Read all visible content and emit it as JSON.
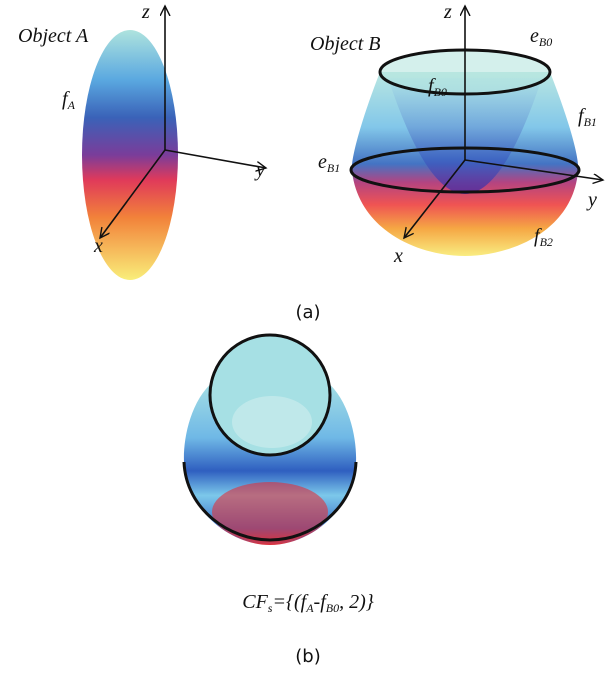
{
  "panel_a": {
    "object_a": {
      "title": "Object A",
      "axes": {
        "z": "z",
        "y": "y",
        "x": "x"
      },
      "label": {
        "base": "f",
        "sub": "A"
      }
    },
    "object_b": {
      "title": "Object B",
      "axes": {
        "z": "z",
        "y": "y",
        "x": "x"
      },
      "labels": [
        {
          "base": "e",
          "sub": "B0"
        },
        {
          "base": "f",
          "sub": "B0"
        },
        {
          "base": "f",
          "sub": "B1"
        },
        {
          "base": "e",
          "sub": "B1"
        },
        {
          "base": "f",
          "sub": "B2"
        }
      ]
    },
    "caption": "(a)"
  },
  "panel_b": {
    "formula": [
      {
        "text": "CF"
      },
      {
        "sub": "s"
      },
      {
        "text": "={(f"
      },
      {
        "sub": "A"
      },
      {
        "text": "-f"
      },
      {
        "sub": "B0"
      },
      {
        "text": ", 2)}"
      }
    ],
    "caption": "(b)"
  }
}
